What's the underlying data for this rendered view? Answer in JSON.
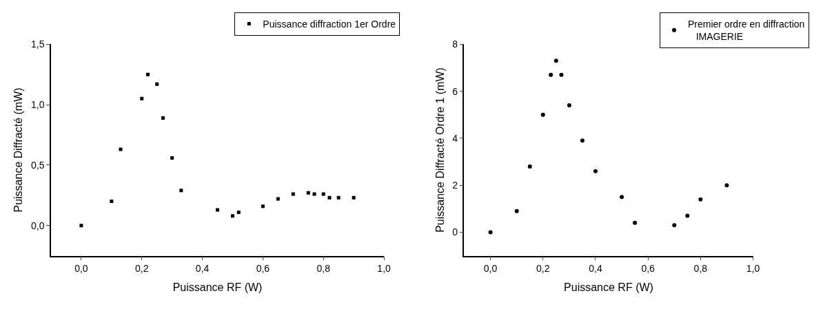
{
  "chart_data": [
    {
      "type": "scatter",
      "xlabel": "Puissance RF (W)",
      "ylabel": "Puissance Diffracté (mW)",
      "marker": "square",
      "legend": "top right",
      "grid": false,
      "xlim": [
        -0.1,
        1.0
      ],
      "ylim": [
        -0.25,
        1.5
      ],
      "xticks": [
        {
          "value": 0,
          "label": "0,0"
        },
        {
          "value": 0.2,
          "label": "0,2"
        },
        {
          "value": 0.4,
          "label": "0,4"
        },
        {
          "value": 0.6,
          "label": "0,6"
        },
        {
          "value": 0.8,
          "label": "0,8"
        },
        {
          "value": 1.0,
          "label": "1,0"
        }
      ],
      "yticks": [
        {
          "value": 0,
          "label": "0,0"
        },
        {
          "value": 0.5,
          "label": "0,5"
        },
        {
          "value": 1.0,
          "label": "1,0"
        },
        {
          "value": 1.5,
          "label": "1,5"
        }
      ],
      "series": [
        {
          "name": "Puissance diffraction 1er Ordre",
          "color": "#000000",
          "x": [
            0,
            0.1,
            0.13,
            0.2,
            0.22,
            0.25,
            0.27,
            0.3,
            0.33,
            0.45,
            0.5,
            0.52,
            0.6,
            0.65,
            0.7,
            0.75,
            0.77,
            0.8,
            0.82,
            0.85,
            0.9
          ],
          "values": [
            0,
            0.2,
            0.63,
            1.05,
            1.25,
            1.17,
            0.89,
            0.56,
            0.29,
            0.13,
            0.08,
            0.11,
            0.16,
            0.22,
            0.26,
            0.27,
            0.26,
            0.26,
            0.23,
            0.23,
            0.23
          ]
        }
      ]
    },
    {
      "type": "scatter",
      "xlabel": "Puissance RF (W)",
      "ylabel": "Puissance Diffracté Ordre 1 (mW)",
      "marker": "circle",
      "legend": "top right",
      "grid": false,
      "xlim": [
        -0.1,
        1.0
      ],
      "ylim": [
        -1,
        8
      ],
      "xticks": [
        {
          "value": 0,
          "label": "0,0"
        },
        {
          "value": 0.2,
          "label": "0,2"
        },
        {
          "value": 0.4,
          "label": "0,4"
        },
        {
          "value": 0.6,
          "label": "0,6"
        },
        {
          "value": 0.8,
          "label": "0,8"
        },
        {
          "value": 1.0,
          "label": "1,0"
        }
      ],
      "yticks": [
        0,
        2,
        4,
        6,
        8
      ],
      "series": [
        {
          "name": "Premier ordre en diffraction\n   IMAGERIE",
          "color": "#000000",
          "x": [
            0,
            0.1,
            0.15,
            0.2,
            0.23,
            0.25,
            0.27,
            0.3,
            0.35,
            0.4,
            0.5,
            0.55,
            0.7,
            0.75,
            0.8,
            0.9
          ],
          "values": [
            0,
            0.9,
            2.8,
            5,
            6.7,
            7.3,
            6.7,
            5.4,
            3.9,
            2.6,
            1.5,
            0.4,
            0.3,
            0.7,
            1.4,
            2.0
          ]
        }
      ]
    }
  ]
}
